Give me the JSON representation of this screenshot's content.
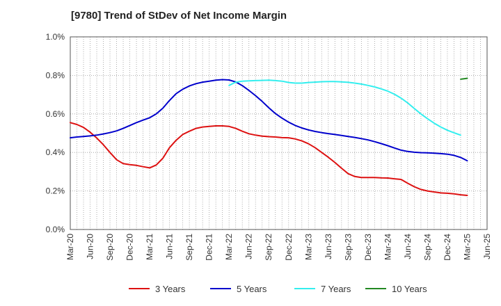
{
  "chart_data": {
    "type": "line",
    "title": "[9780]  Trend of StDev of Net Income Margin",
    "xlabel": "",
    "ylabel": "",
    "x_ticks": [
      "Mar-20",
      "Jun-20",
      "Sep-20",
      "Dec-20",
      "Mar-21",
      "Jun-21",
      "Sep-21",
      "Dec-21",
      "Mar-22",
      "Jun-22",
      "Sep-22",
      "Dec-22",
      "Mar-23",
      "Jun-23",
      "Sep-23",
      "Dec-23",
      "Mar-24",
      "Jun-24",
      "Sep-24",
      "Dec-24",
      "Mar-25",
      "Jun-25"
    ],
    "y_ticks": [
      "0.0%",
      "0.2%",
      "0.4%",
      "0.6%",
      "0.8%",
      "1.0%"
    ],
    "ylim": [
      0,
      1.0
    ],
    "y_unit": "%",
    "grid": true,
    "legend_position": "bottom",
    "series": [
      {
        "name": "3 Years",
        "color": "#dd1111",
        "points": [
          [
            "Mar-20",
            0.555
          ],
          [
            "Apr-20",
            0.545
          ],
          [
            "May-20",
            0.53
          ],
          [
            "Jun-20",
            0.505
          ],
          [
            "Jul-20",
            0.475
          ],
          [
            "Aug-20",
            0.44
          ],
          [
            "Sep-20",
            0.4
          ],
          [
            "Oct-20",
            0.362
          ],
          [
            "Nov-20",
            0.342
          ],
          [
            "Dec-20",
            0.337
          ],
          [
            "Jan-21",
            0.333
          ],
          [
            "Feb-21",
            0.326
          ],
          [
            "Mar-21",
            0.32
          ],
          [
            "Apr-21",
            0.335
          ],
          [
            "May-21",
            0.37
          ],
          [
            "Jun-21",
            0.425
          ],
          [
            "Jul-21",
            0.463
          ],
          [
            "Aug-21",
            0.493
          ],
          [
            "Sep-21",
            0.51
          ],
          [
            "Oct-21",
            0.525
          ],
          [
            "Nov-21",
            0.532
          ],
          [
            "Dec-21",
            0.535
          ],
          [
            "Jan-22",
            0.538
          ],
          [
            "Feb-22",
            0.538
          ],
          [
            "Mar-22",
            0.535
          ],
          [
            "Apr-22",
            0.525
          ],
          [
            "May-22",
            0.51
          ],
          [
            "Jun-22",
            0.497
          ],
          [
            "Jul-22",
            0.49
          ],
          [
            "Aug-22",
            0.485
          ],
          [
            "Sep-22",
            0.482
          ],
          [
            "Oct-22",
            0.48
          ],
          [
            "Nov-22",
            0.477
          ],
          [
            "Dec-22",
            0.476
          ],
          [
            "Jan-23",
            0.47
          ],
          [
            "Feb-23",
            0.46
          ],
          [
            "Mar-23",
            0.445
          ],
          [
            "Apr-23",
            0.425
          ],
          [
            "May-23",
            0.4
          ],
          [
            "Jun-23",
            0.375
          ],
          [
            "Jul-23",
            0.348
          ],
          [
            "Aug-23",
            0.318
          ],
          [
            "Sep-23",
            0.29
          ],
          [
            "Oct-23",
            0.275
          ],
          [
            "Nov-23",
            0.27
          ],
          [
            "Dec-23",
            0.27
          ],
          [
            "Jan-24",
            0.27
          ],
          [
            "Feb-24",
            0.268
          ],
          [
            "Mar-24",
            0.267
          ],
          [
            "Apr-24",
            0.263
          ],
          [
            "May-24",
            0.26
          ],
          [
            "Jun-24",
            0.24
          ],
          [
            "Jul-24",
            0.222
          ],
          [
            "Aug-24",
            0.208
          ],
          [
            "Sep-24",
            0.2
          ],
          [
            "Oct-24",
            0.195
          ],
          [
            "Nov-24",
            0.19
          ],
          [
            "Dec-24",
            0.188
          ],
          [
            "Jan-25",
            0.185
          ],
          [
            "Feb-25",
            0.18
          ],
          [
            "Mar-25",
            0.177
          ]
        ]
      },
      {
        "name": "5 Years",
        "color": "#0000cc",
        "points": [
          [
            "Mar-20",
            0.476
          ],
          [
            "Apr-20",
            0.48
          ],
          [
            "May-20",
            0.483
          ],
          [
            "Jun-20",
            0.486
          ],
          [
            "Jul-20",
            0.49
          ],
          [
            "Aug-20",
            0.496
          ],
          [
            "Sep-20",
            0.503
          ],
          [
            "Oct-20",
            0.512
          ],
          [
            "Nov-20",
            0.525
          ],
          [
            "Dec-20",
            0.54
          ],
          [
            "Jan-21",
            0.555
          ],
          [
            "Feb-21",
            0.568
          ],
          [
            "Mar-21",
            0.58
          ],
          [
            "Apr-21",
            0.6
          ],
          [
            "May-21",
            0.63
          ],
          [
            "Jun-21",
            0.67
          ],
          [
            "Jul-21",
            0.705
          ],
          [
            "Aug-21",
            0.728
          ],
          [
            "Sep-21",
            0.745
          ],
          [
            "Oct-21",
            0.757
          ],
          [
            "Nov-21",
            0.765
          ],
          [
            "Dec-21",
            0.77
          ],
          [
            "Jan-22",
            0.775
          ],
          [
            "Feb-22",
            0.778
          ],
          [
            "Mar-22",
            0.776
          ],
          [
            "Apr-22",
            0.766
          ],
          [
            "May-22",
            0.747
          ],
          [
            "Jun-22",
            0.722
          ],
          [
            "Jul-22",
            0.695
          ],
          [
            "Aug-22",
            0.665
          ],
          [
            "Sep-22",
            0.632
          ],
          [
            "Oct-22",
            0.602
          ],
          [
            "Nov-22",
            0.578
          ],
          [
            "Dec-22",
            0.557
          ],
          [
            "Jan-23",
            0.54
          ],
          [
            "Feb-23",
            0.527
          ],
          [
            "Mar-23",
            0.517
          ],
          [
            "Apr-23",
            0.509
          ],
          [
            "May-23",
            0.503
          ],
          [
            "Jun-23",
            0.498
          ],
          [
            "Jul-23",
            0.493
          ],
          [
            "Aug-23",
            0.488
          ],
          [
            "Sep-23",
            0.483
          ],
          [
            "Oct-23",
            0.478
          ],
          [
            "Nov-23",
            0.472
          ],
          [
            "Dec-23",
            0.465
          ],
          [
            "Jan-24",
            0.456
          ],
          [
            "Feb-24",
            0.446
          ],
          [
            "Mar-24",
            0.435
          ],
          [
            "Apr-24",
            0.423
          ],
          [
            "May-24",
            0.412
          ],
          [
            "Jun-24",
            0.405
          ],
          [
            "Jul-24",
            0.401
          ],
          [
            "Aug-24",
            0.399
          ],
          [
            "Sep-24",
            0.398
          ],
          [
            "Oct-24",
            0.396
          ],
          [
            "Nov-24",
            0.394
          ],
          [
            "Dec-24",
            0.391
          ],
          [
            "Jan-25",
            0.385
          ],
          [
            "Feb-25",
            0.374
          ],
          [
            "Mar-25",
            0.357
          ]
        ]
      },
      {
        "name": "7 Years",
        "color": "#33eeee",
        "points": [
          [
            "Mar-22",
            0.748
          ],
          [
            "Apr-22",
            0.765
          ],
          [
            "May-22",
            0.77
          ],
          [
            "Jun-22",
            0.772
          ],
          [
            "Jul-22",
            0.773
          ],
          [
            "Aug-22",
            0.774
          ],
          [
            "Sep-22",
            0.775
          ],
          [
            "Oct-22",
            0.773
          ],
          [
            "Nov-22",
            0.77
          ],
          [
            "Dec-22",
            0.763
          ],
          [
            "Jan-23",
            0.76
          ],
          [
            "Feb-23",
            0.76
          ],
          [
            "Mar-23",
            0.763
          ],
          [
            "Apr-23",
            0.765
          ],
          [
            "May-23",
            0.767
          ],
          [
            "Jun-23",
            0.768
          ],
          [
            "Jul-23",
            0.768
          ],
          [
            "Aug-23",
            0.766
          ],
          [
            "Sep-23",
            0.764
          ],
          [
            "Oct-23",
            0.76
          ],
          [
            "Nov-23",
            0.755
          ],
          [
            "Dec-23",
            0.748
          ],
          [
            "Jan-24",
            0.74
          ],
          [
            "Feb-24",
            0.73
          ],
          [
            "Mar-24",
            0.718
          ],
          [
            "Apr-24",
            0.702
          ],
          [
            "May-24",
            0.682
          ],
          [
            "Jun-24",
            0.657
          ],
          [
            "Jul-24",
            0.628
          ],
          [
            "Aug-24",
            0.6
          ],
          [
            "Sep-24",
            0.575
          ],
          [
            "Oct-24",
            0.552
          ],
          [
            "Nov-24",
            0.532
          ],
          [
            "Dec-24",
            0.515
          ],
          [
            "Jan-25",
            0.502
          ],
          [
            "Feb-25",
            0.49
          ]
        ]
      },
      {
        "name": "10 Years",
        "color": "#228822",
        "points": [
          [
            "Feb-25",
            0.78
          ],
          [
            "Mar-25",
            0.785
          ]
        ]
      }
    ]
  }
}
